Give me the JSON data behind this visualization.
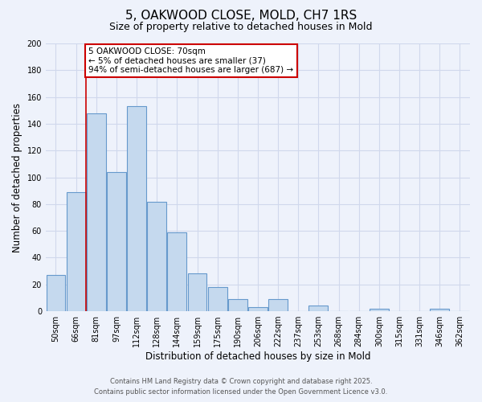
{
  "title": "5, OAKWOOD CLOSE, MOLD, CH7 1RS",
  "subtitle": "Size of property relative to detached houses in Mold",
  "xlabel": "Distribution of detached houses by size in Mold",
  "ylabel": "Number of detached properties",
  "categories": [
    "50sqm",
    "66sqm",
    "81sqm",
    "97sqm",
    "112sqm",
    "128sqm",
    "144sqm",
    "159sqm",
    "175sqm",
    "190sqm",
    "206sqm",
    "222sqm",
    "237sqm",
    "253sqm",
    "268sqm",
    "284sqm",
    "300sqm",
    "315sqm",
    "331sqm",
    "346sqm",
    "362sqm"
  ],
  "values": [
    27,
    89,
    148,
    104,
    153,
    82,
    59,
    28,
    18,
    9,
    3,
    9,
    0,
    4,
    0,
    0,
    2,
    0,
    0,
    2,
    0
  ],
  "bar_color": "#c5d9ee",
  "bar_edge_color": "#6699cc",
  "highlight_index": 1,
  "highlight_line_color": "#cc0000",
  "ylim": [
    0,
    200
  ],
  "yticks": [
    0,
    20,
    40,
    60,
    80,
    100,
    120,
    140,
    160,
    180,
    200
  ],
  "annotation_text": "5 OAKWOOD CLOSE: 70sqm\n← 5% of detached houses are smaller (37)\n94% of semi-detached houses are larger (687) →",
  "annotation_box_color": "#ffffff",
  "annotation_box_edge_color": "#cc0000",
  "footer_line1": "Contains HM Land Registry data © Crown copyright and database right 2025.",
  "footer_line2": "Contains public sector information licensed under the Open Government Licence v3.0.",
  "background_color": "#eef2fb",
  "grid_color": "#d0d8ec",
  "title_fontsize": 11,
  "subtitle_fontsize": 9,
  "axis_label_fontsize": 8.5,
  "tick_fontsize": 7,
  "annotation_fontsize": 7.5,
  "footer_fontsize": 6
}
